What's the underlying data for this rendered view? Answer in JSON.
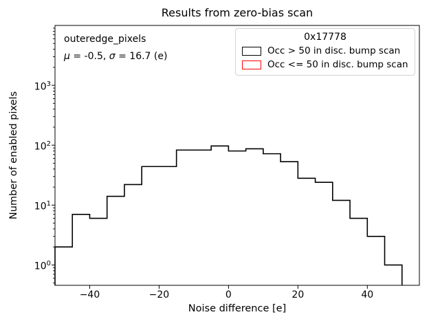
{
  "title": "Results from zero-bias scan",
  "annotation": {
    "dataset": "outeredge_pixels",
    "mu_symbol": "μ",
    "mu_rest": " = -0.5, ",
    "sigma_symbol": "σ",
    "sigma_rest": " = 16.7 (e)"
  },
  "legend": {
    "title": "0x17778",
    "entries": [
      {
        "label": "Occ > 50 in disc. bump scan",
        "color": "#000000"
      },
      {
        "label": "Occ <= 50 in disc. bump scan",
        "color": "#ff0000"
      }
    ]
  },
  "axes": {
    "xlabel": "Noise difference [e]",
    "ylabel": "Number of enabled pixels",
    "xlim": [
      -50,
      55
    ],
    "ylog_range": [
      -0.34,
      4.0
    ],
    "xticks": [
      {
        "value": -40,
        "label": "−40"
      },
      {
        "value": -20,
        "label": "−20"
      },
      {
        "value": 0,
        "label": "0"
      },
      {
        "value": 20,
        "label": "20"
      },
      {
        "value": 40,
        "label": "40"
      }
    ],
    "ytick_exponents": [
      0,
      1,
      2,
      3
    ],
    "grid": false
  },
  "chart_data": {
    "type": "histogram-step",
    "title": "Results from zero-bias scan",
    "xlabel": "Noise difference [e]",
    "ylabel": "Number of enabled pixels",
    "y_scale": "log",
    "xlim": [
      -50,
      55
    ],
    "ylim": [
      0.46,
      10000
    ],
    "legend_position": "upper right",
    "bin_edges": [
      -50,
      -45,
      -40,
      -35,
      -30,
      -25,
      -20,
      -15,
      -10,
      -5,
      0,
      5,
      10,
      15,
      20,
      25,
      30,
      35,
      40,
      45,
      50
    ],
    "series": [
      {
        "name": "Occ > 50 in disc. bump scan",
        "color": "#000000",
        "counts": [
          2,
          7,
          6,
          14,
          22,
          44,
          44,
          83,
          83,
          97,
          80,
          87,
          72,
          53,
          28,
          24,
          12,
          6,
          3,
          1
        ]
      },
      {
        "name": "Occ <= 50 in disc. bump scan",
        "color": "#ff0000",
        "counts": []
      }
    ],
    "stats": {
      "mu": -0.5,
      "sigma": 16.7,
      "units": "e"
    }
  }
}
